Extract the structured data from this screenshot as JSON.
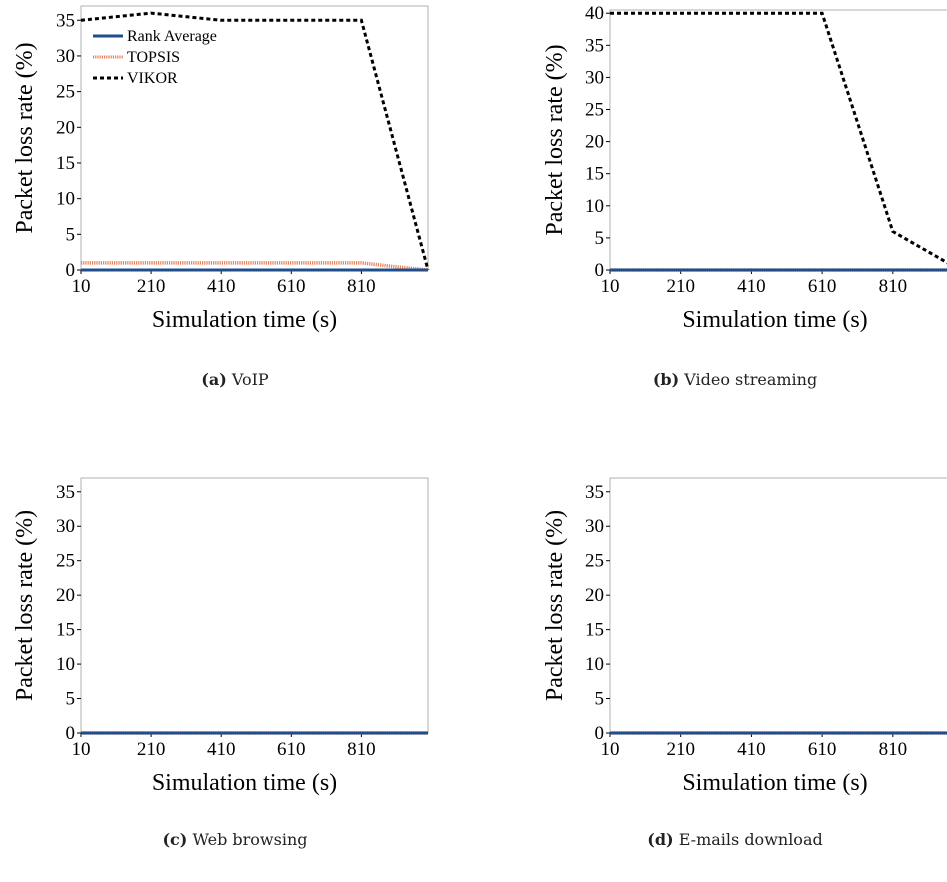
{
  "chart_data": [
    {
      "type": "line",
      "caption_letter": "(a)",
      "caption_text": "VoIP",
      "xlabel": "Simulation time (s)",
      "ylabel": "Packet loss rate (%)",
      "xlim": [
        10,
        1000
      ],
      "ylim": [
        0,
        37
      ],
      "xticks": [
        10,
        210,
        410,
        610,
        810
      ],
      "yticks": [
        0,
        5,
        10,
        15,
        20,
        25,
        30,
        35
      ],
      "legend": "top-left",
      "series": [
        {
          "name": "Rank Average",
          "color": "#1f4e8c",
          "style": "solid",
          "x": [
            10,
            1000
          ],
          "y": [
            0,
            0
          ]
        },
        {
          "name": "TOPSIS",
          "color": "#e8825a",
          "style": "hatched",
          "x": [
            10,
            810,
            900,
            1000
          ],
          "y": [
            1,
            1,
            0.5,
            0
          ]
        },
        {
          "name": "VIKOR",
          "color": "#000000",
          "style": "dotted",
          "x": [
            10,
            210,
            410,
            610,
            810,
            1000
          ],
          "y": [
            35,
            36,
            35,
            35,
            35,
            0
          ]
        }
      ]
    },
    {
      "type": "line",
      "caption_letter": "(b)",
      "caption_text": "Video streaming",
      "xlabel": "Simulation time (s)",
      "ylabel": "Packet loss rate (%)",
      "xlim": [
        10,
        1000
      ],
      "ylim": [
        0,
        40.5
      ],
      "xticks": [
        10,
        210,
        410,
        610,
        810
      ],
      "yticks": [
        0,
        5,
        10,
        15,
        20,
        25,
        30,
        35,
        40
      ],
      "series": [
        {
          "color": "#1f4e8c",
          "style": "solid",
          "x": [
            10,
            1000
          ],
          "y": [
            0,
            0
          ]
        },
        {
          "color": "#e8825a",
          "style": "hatched",
          "x": [
            10,
            1000
          ],
          "y": [
            0,
            0
          ]
        },
        {
          "color": "#000000",
          "style": "dotted",
          "x": [
            10,
            210,
            410,
            610,
            810,
            1000
          ],
          "y": [
            40,
            40,
            40,
            40,
            6,
            0
          ]
        }
      ]
    },
    {
      "type": "line",
      "caption_letter": "(c)",
      "caption_text": "Web browsing",
      "xlabel": "Simulation time (s)",
      "ylabel": "Packet loss rate (%)",
      "xlim": [
        10,
        1000
      ],
      "ylim": [
        0,
        37
      ],
      "xticks": [
        10,
        210,
        410,
        610,
        810
      ],
      "yticks": [
        0,
        5,
        10,
        15,
        20,
        25,
        30,
        35
      ],
      "series": [
        {
          "color": "#1f4e8c",
          "style": "solid",
          "x": [
            10,
            1000
          ],
          "y": [
            0,
            0
          ]
        },
        {
          "color": "#e8825a",
          "style": "hatched",
          "x": [
            10,
            1000
          ],
          "y": [
            0,
            0
          ]
        },
        {
          "color": "#000000",
          "style": "dotted",
          "x": [
            10,
            1000
          ],
          "y": [
            0,
            0
          ]
        }
      ]
    },
    {
      "type": "line",
      "caption_letter": "(d)",
      "caption_text": "E-mails download",
      "xlabel": "Simulation time (s)",
      "ylabel": "Packet loss rate (%)",
      "xlim": [
        10,
        1000
      ],
      "ylim": [
        0,
        37
      ],
      "xticks": [
        10,
        210,
        410,
        610,
        810
      ],
      "yticks": [
        0,
        5,
        10,
        15,
        20,
        25,
        30,
        35
      ],
      "series": [
        {
          "color": "#1f4e8c",
          "style": "solid",
          "x": [
            10,
            1000
          ],
          "y": [
            0,
            0
          ]
        },
        {
          "color": "#e8825a",
          "style": "hatched",
          "x": [
            10,
            1000
          ],
          "y": [
            0,
            0
          ]
        },
        {
          "color": "#000000",
          "style": "dotted",
          "x": [
            10,
            1000
          ],
          "y": [
            0,
            0
          ]
        }
      ]
    }
  ]
}
